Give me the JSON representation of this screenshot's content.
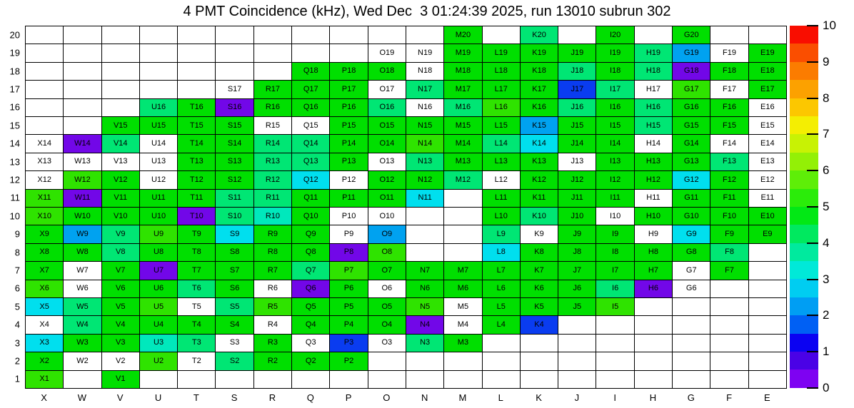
{
  "title": "4 PMT Coincidence (kHz), Wed Dec  3 01:24:39 2025, run 13010 subrun 302",
  "chart_data": {
    "type": "heatmap",
    "title": "4 PMT Coincidence (kHz), Wed Dec  3 01:24:39 2025, run 13010 subrun 302",
    "unit": "kHz",
    "run": "13010",
    "subrun": "302",
    "columns": [
      "X",
      "W",
      "V",
      "U",
      "T",
      "S",
      "R",
      "Q",
      "P",
      "O",
      "N",
      "M",
      "L",
      "K",
      "J",
      "I",
      "H",
      "G",
      "F",
      "E"
    ],
    "rows": [
      20,
      19,
      18,
      17,
      16,
      15,
      14,
      13,
      12,
      11,
      10,
      9,
      8,
      7,
      6,
      5,
      4,
      3,
      2,
      1
    ],
    "palette": {
      "g": {
        "name": "green",
        "color": "#00df00",
        "value": 5.2
      },
      "y": {
        "name": "yellow-green",
        "color": "#2fe300",
        "value": 5.9
      },
      "s": {
        "name": "spring-green",
        "color": "#00e674",
        "value": 4.5
      },
      "t": {
        "name": "turquoise",
        "color": "#00e8bc",
        "value": 3.9
      },
      "c": {
        "name": "cyan",
        "color": "#00dfee",
        "value": 3.2
      },
      "d": {
        "name": "light-blue",
        "color": "#00a2f0",
        "value": 2.6
      },
      "b": {
        "name": "blue",
        "color": "#0a3cf0",
        "value": 1.9
      },
      "p": {
        "name": "purple",
        "color": "#7207e8",
        "value": 0.5
      },
      "w": {
        "name": "blank-labeled",
        "color": "#ffffff",
        "value": 0
      },
      "e": {
        "name": "empty",
        "color": "#ffffff",
        "value": null
      }
    },
    "grid": [
      {
        "row": 20,
        "cells": [
          "e",
          "e",
          "e",
          "e",
          "e",
          "e",
          "e",
          "e",
          "e",
          "e",
          "e",
          "g",
          "e",
          "s",
          "e",
          "g",
          "e",
          "g",
          "e",
          "e"
        ]
      },
      {
        "row": 19,
        "cells": [
          "e",
          "e",
          "e",
          "e",
          "e",
          "e",
          "e",
          "e",
          "e",
          "w",
          "w",
          "g",
          "g",
          "g",
          "g",
          "g",
          "s",
          "d",
          "w",
          "g"
        ]
      },
      {
        "row": 18,
        "cells": [
          "e",
          "e",
          "e",
          "e",
          "e",
          "e",
          "e",
          "g",
          "g",
          "g",
          "w",
          "g",
          "g",
          "g",
          "s",
          "g",
          "s",
          "p",
          "g",
          "g"
        ]
      },
      {
        "row": 17,
        "cells": [
          "e",
          "e",
          "e",
          "e",
          "e",
          "w",
          "g",
          "g",
          "g",
          "w",
          "s",
          "g",
          "g",
          "g",
          "b",
          "s",
          "w",
          "y",
          "w",
          "g"
        ]
      },
      {
        "row": 16,
        "cells": [
          "e",
          "e",
          "e",
          "s",
          "g",
          "p",
          "g",
          "g",
          "g",
          "s",
          "w",
          "s",
          "y",
          "g",
          "s",
          "g",
          "s",
          "g",
          "g",
          "w"
        ]
      },
      {
        "row": 15,
        "cells": [
          "e",
          "e",
          "g",
          "g",
          "g",
          "g",
          "w",
          "w",
          "g",
          "g",
          "g",
          "g",
          "g",
          "d",
          "g",
          "g",
          "s",
          "g",
          "g",
          "w"
        ]
      },
      {
        "row": 14,
        "cells": [
          "w",
          "p",
          "s",
          "w",
          "g",
          "g",
          "s",
          "s",
          "g",
          "g",
          "y",
          "g",
          "s",
          "c",
          "g",
          "g",
          "w",
          "g",
          "w",
          "w"
        ]
      },
      {
        "row": 13,
        "cells": [
          "w",
          "w",
          "w",
          "w",
          "g",
          "g",
          "s",
          "s",
          "g",
          "w",
          "s",
          "g",
          "g",
          "g",
          "w",
          "g",
          "g",
          "g",
          "s",
          "w"
        ]
      },
      {
        "row": 12,
        "cells": [
          "w",
          "y",
          "g",
          "w",
          "g",
          "g",
          "s",
          "c",
          "w",
          "g",
          "g",
          "s",
          "w",
          "g",
          "g",
          "g",
          "g",
          "c",
          "g",
          "w"
        ]
      },
      {
        "row": 11,
        "cells": [
          "y",
          "p",
          "g",
          "g",
          "g",
          "s",
          "s",
          "g",
          "g",
          "g",
          "c",
          "e",
          "g",
          "g",
          "g",
          "g",
          "w",
          "g",
          "g",
          "w"
        ]
      },
      {
        "row": 10,
        "cells": [
          "y",
          "g",
          "g",
          "g",
          "p",
          "s",
          "t",
          "g",
          "w",
          "w",
          "e",
          "e",
          "g",
          "s",
          "g",
          "w",
          "g",
          "g",
          "g",
          "g"
        ]
      },
      {
        "row": 9,
        "cells": [
          "g",
          "d",
          "s",
          "y",
          "g",
          "c",
          "g",
          "g",
          "w",
          "d",
          "e",
          "e",
          "s",
          "w",
          "g",
          "g",
          "w",
          "c",
          "g",
          "g"
        ]
      },
      {
        "row": 8,
        "cells": [
          "g",
          "g",
          "s",
          "g",
          "g",
          "g",
          "g",
          "g",
          "p",
          "y",
          "e",
          "e",
          "c",
          "g",
          "g",
          "g",
          "g",
          "g",
          "s",
          "e"
        ]
      },
      {
        "row": 7,
        "cells": [
          "g",
          "w",
          "g",
          "p",
          "g",
          "g",
          "g",
          "s",
          "y",
          "g",
          "g",
          "g",
          "g",
          "g",
          "g",
          "g",
          "g",
          "w",
          "g",
          "e"
        ]
      },
      {
        "row": 6,
        "cells": [
          "y",
          "w",
          "g",
          "g",
          "s",
          "g",
          "w",
          "p",
          "g",
          "w",
          "g",
          "g",
          "g",
          "g",
          "g",
          "s",
          "p",
          "w",
          "e",
          "e"
        ]
      },
      {
        "row": 5,
        "cells": [
          "c",
          "s",
          "g",
          "y",
          "w",
          "s",
          "y",
          "g",
          "g",
          "g",
          "y",
          "w",
          "g",
          "g",
          "g",
          "y",
          "e",
          "e",
          "e",
          "e"
        ]
      },
      {
        "row": 4,
        "cells": [
          "w",
          "s",
          "g",
          "g",
          "g",
          "g",
          "w",
          "g",
          "g",
          "g",
          "p",
          "w",
          "g",
          "b",
          "e",
          "e",
          "e",
          "e",
          "e",
          "e"
        ]
      },
      {
        "row": 3,
        "cells": [
          "c",
          "g",
          "g",
          "t",
          "s",
          "w",
          "g",
          "w",
          "b",
          "w",
          "s",
          "g",
          "e",
          "e",
          "e",
          "e",
          "e",
          "e",
          "e",
          "e"
        ]
      },
      {
        "row": 2,
        "cells": [
          "g",
          "w",
          "w",
          "y",
          "w",
          "s",
          "g",
          "g",
          "g",
          "e",
          "e",
          "e",
          "e",
          "e",
          "e",
          "e",
          "e",
          "e",
          "e",
          "e"
        ]
      },
      {
        "row": 1,
        "cells": [
          "y",
          "e",
          "g",
          "e",
          "e",
          "e",
          "e",
          "e",
          "e",
          "e",
          "e",
          "e",
          "e",
          "e",
          "e",
          "e",
          "e",
          "e",
          "e",
          "e"
        ]
      }
    ],
    "colorbar": {
      "min": 0,
      "max": 10,
      "tick_labels": [
        "10",
        "9",
        "8",
        "7",
        "6",
        "5",
        "4",
        "3",
        "2",
        "1",
        "0"
      ],
      "band_colors_top_to_bottom": [
        "#f90d00",
        "#fa4e00",
        "#fb7c00",
        "#fca100",
        "#fcc700",
        "#f4ee02",
        "#c8f204",
        "#93f006",
        "#5eee08",
        "#2bec0a",
        "#02e815",
        "#00e95f",
        "#00ea9e",
        "#00e9d8",
        "#00cdf1",
        "#009ef3",
        "#0060f4",
        "#0b02f2",
        "#4a02e6",
        "#7e02f2"
      ],
      "legend_position": "right"
    },
    "layout": {
      "grid_lines": "on",
      "cell_label_format": "columnLetter+rowNumber"
    }
  }
}
